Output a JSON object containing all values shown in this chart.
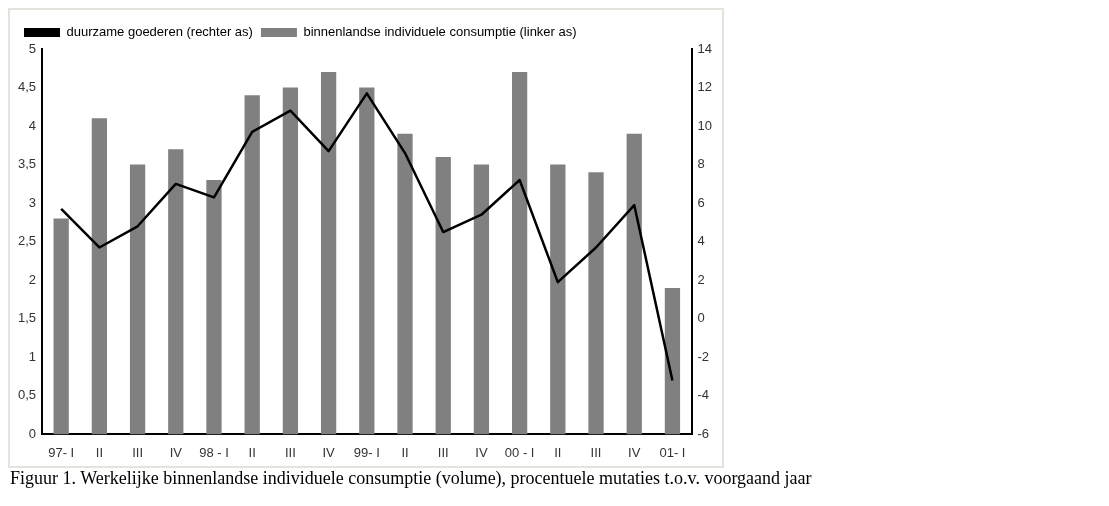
{
  "chart_data": {
    "type": "bar",
    "categories": [
      "97- I",
      "II",
      "III",
      "IV",
      "98 - I",
      "II",
      "III",
      "IV",
      "99- I",
      "II",
      "III",
      "IV",
      "00 - I",
      "II",
      "III",
      "IV",
      "01- I"
    ],
    "series": [
      {
        "name": "duurzame goederen (rechter as)",
        "type": "line",
        "axis": "y2",
        "color": "#000000",
        "values": [
          5.7,
          3.7,
          4.8,
          7.0,
          6.3,
          9.7,
          10.8,
          8.7,
          11.7,
          8.6,
          4.5,
          5.4,
          7.2,
          1.9,
          3.7,
          5.9,
          -3.2
        ]
      },
      {
        "name": "binnenlandse individuele consumptie (linker as)",
        "color": "#808080",
        "values": [
          2.8,
          4.1,
          3.5,
          3.7,
          3.3,
          4.4,
          4.5,
          4.7,
          4.5,
          3.9,
          3.6,
          3.5,
          4.7,
          3.5,
          3.4,
          3.9,
          1.9
        ]
      }
    ],
    "ylim": [
      0,
      5
    ],
    "yticks": [
      {
        "value": 0,
        "label": "0"
      },
      {
        "value": 0.5,
        "label": "0,5"
      },
      {
        "value": 1,
        "label": "1"
      },
      {
        "value": 1.5,
        "label": "1,5"
      },
      {
        "value": 2,
        "label": "2"
      },
      {
        "value": 2.5,
        "label": "2,5"
      },
      {
        "value": 3,
        "label": "3"
      },
      {
        "value": 3.5,
        "label": "3,5"
      },
      {
        "value": 4,
        "label": "4"
      },
      {
        "value": 4.5,
        "label": "4,5"
      },
      {
        "value": 5,
        "label": "5"
      }
    ],
    "y2lim": [
      -6,
      14
    ],
    "y2ticks": [
      -6,
      -4,
      -2,
      0,
      2,
      4,
      6,
      8,
      10,
      12,
      14
    ],
    "grid": false,
    "legend": "top left",
    "marker": "none",
    "annotations": [
      "Figuur 1. Werkelijke binnenlandse individuele consumptie (volume), procentuele mutaties t.o.v. voorgaand jaar"
    ]
  }
}
